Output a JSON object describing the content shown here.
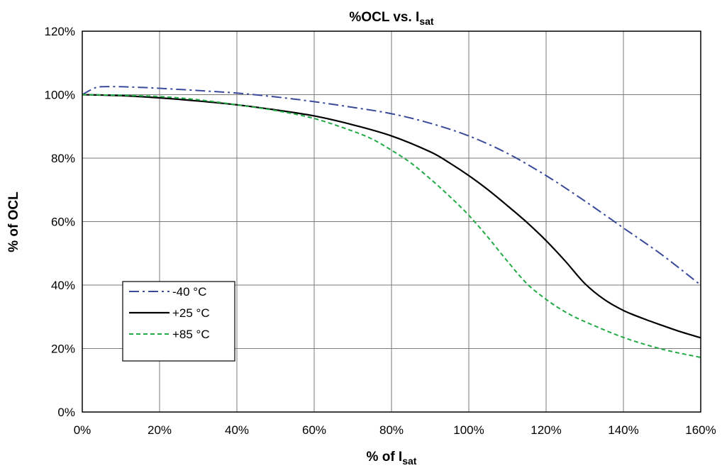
{
  "chart_data": {
    "type": "line",
    "title": {
      "main": "%OCL vs. I",
      "sub": "sat"
    },
    "xlabel": {
      "main": "% of I",
      "sub": "sat"
    },
    "ylabel": "% of OCL",
    "xlim": [
      0,
      160
    ],
    "ylim": [
      0,
      120
    ],
    "x_ticks": [
      0,
      20,
      40,
      60,
      80,
      100,
      120,
      140,
      160
    ],
    "y_ticks": [
      0,
      20,
      40,
      60,
      80,
      100,
      120
    ],
    "x_tick_labels": [
      "0%",
      "20%",
      "40%",
      "60%",
      "80%",
      "100%",
      "120%",
      "140%",
      "160%"
    ],
    "y_tick_labels": [
      "0%",
      "20%",
      "40%",
      "60%",
      "80%",
      "100%",
      "120%"
    ],
    "grid": true,
    "legend_position": "left",
    "series": [
      {
        "name": "-40 °C",
        "color": "#3a4a9a",
        "dash": "dashdot",
        "x": [
          0,
          3,
          5,
          10,
          15,
          20,
          30,
          40,
          50,
          60,
          70,
          80,
          90,
          100,
          110,
          120,
          130,
          140,
          150,
          160
        ],
        "y": [
          100,
          102,
          102.5,
          102.5,
          102.3,
          102,
          101.3,
          100.5,
          99.3,
          97.8,
          96,
          94,
          91,
          87,
          81.5,
          74.5,
          66.5,
          58,
          49.5,
          40
        ]
      },
      {
        "name": "+25 °C",
        "color": "#000000",
        "dash": "solid",
        "x": [
          0,
          10,
          20,
          30,
          40,
          50,
          60,
          70,
          80,
          90,
          95,
          100,
          105,
          110,
          115,
          120,
          125,
          130,
          135,
          140,
          145,
          150,
          155,
          160
        ],
        "y": [
          100,
          99.7,
          99,
          98,
          96.8,
          95.2,
          93.3,
          90.5,
          87,
          82,
          78.5,
          74.5,
          70,
          65,
          59.8,
          54,
          47.5,
          40.5,
          35.5,
          32,
          29.5,
          27.3,
          25.2,
          23.4
        ]
      },
      {
        "name": "+85 °C",
        "color": "#22aa44",
        "dash": "dashed",
        "x": [
          0,
          10,
          20,
          30,
          40,
          50,
          60,
          70,
          75,
          80,
          85,
          90,
          95,
          100,
          105,
          110,
          115,
          120,
          125,
          130,
          140,
          150,
          160
        ],
        "y": [
          100,
          99.8,
          99.4,
          98.4,
          96.8,
          95,
          92.5,
          88.5,
          86,
          82.5,
          78.5,
          73.5,
          68,
          62,
          55,
          47.5,
          40.5,
          35.5,
          31.5,
          28.5,
          23.5,
          19.8,
          17.2
        ]
      }
    ]
  }
}
